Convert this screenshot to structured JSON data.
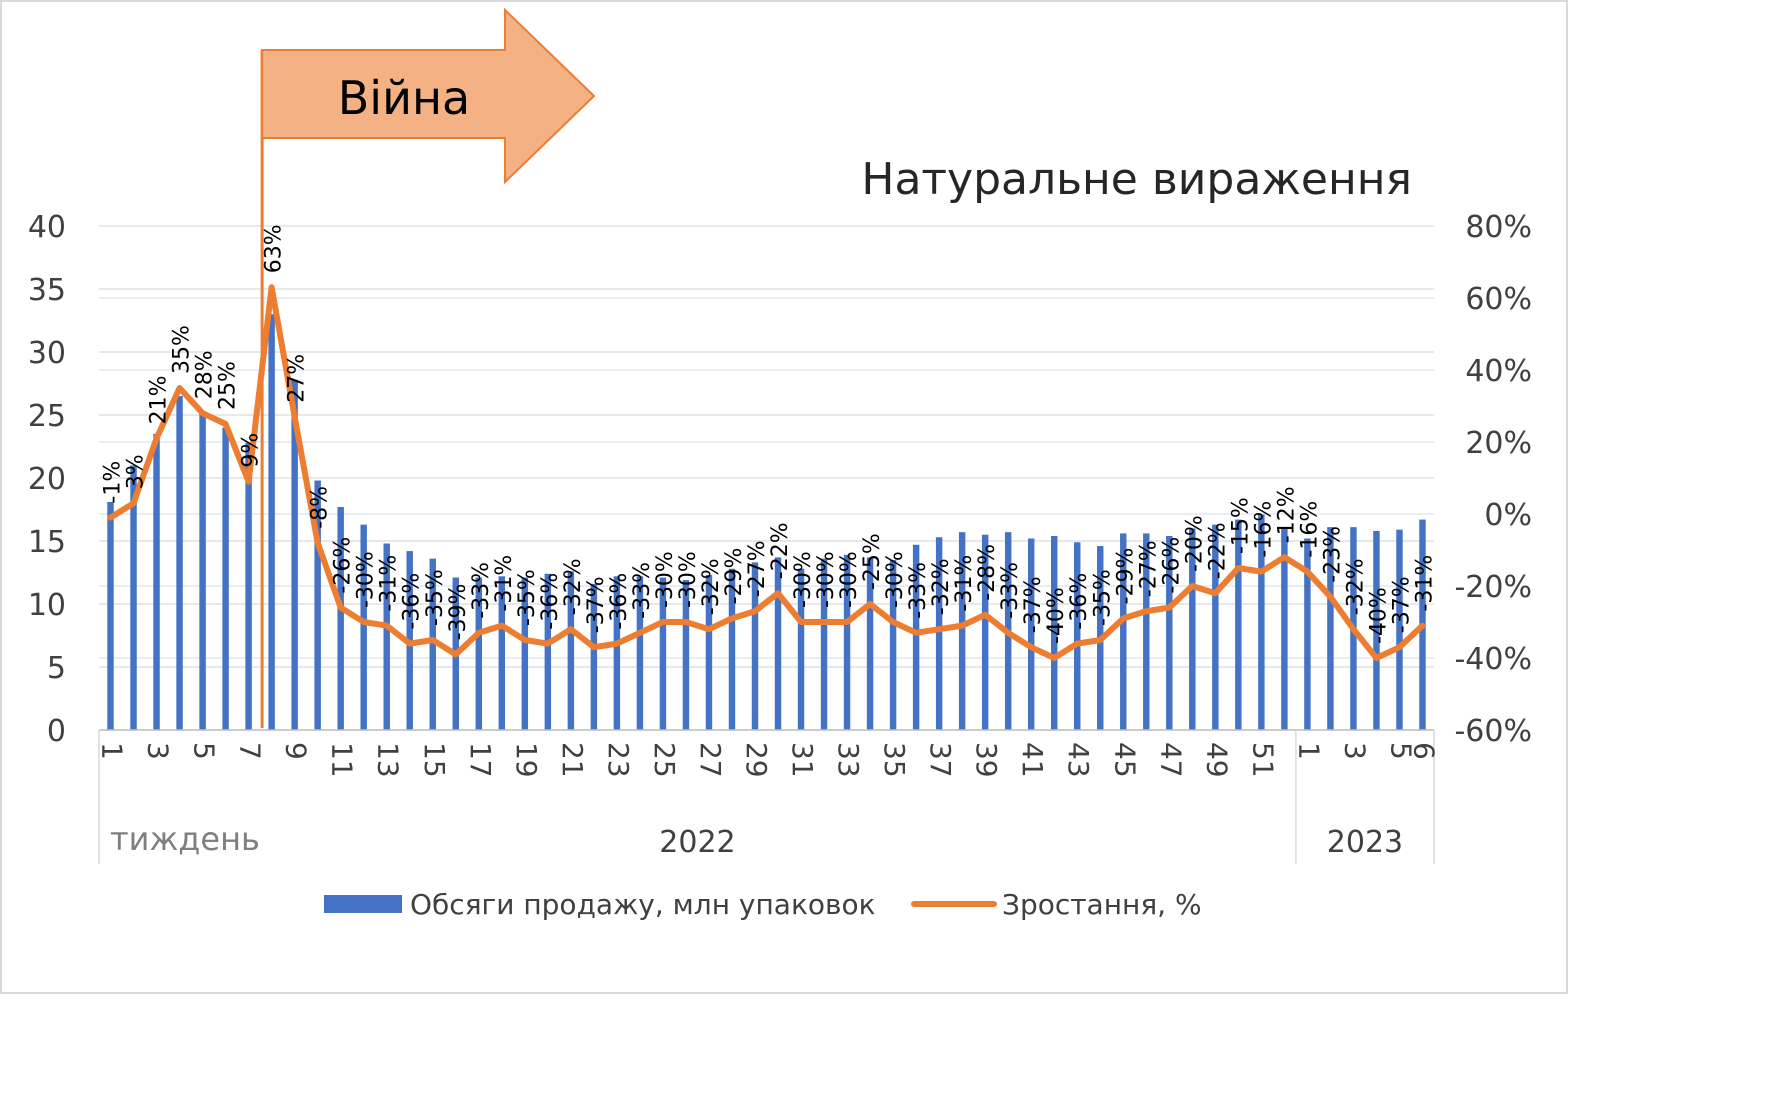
{
  "chart_data": {
    "type": "bar+line",
    "title": "Натуральне вираження",
    "annotation": "Війна",
    "xlabel": "тиждень",
    "year_groups": [
      {
        "label": "2022",
        "start_index": 0,
        "count": 52
      },
      {
        "label": "2023",
        "start_index": 52,
        "count": 6
      }
    ],
    "x_tick_labels": [
      "1",
      "",
      "3",
      "",
      "5",
      "",
      "7",
      "",
      "9",
      "",
      "11",
      "",
      "13",
      "",
      "15",
      "",
      "17",
      "",
      "19",
      "",
      "21",
      "",
      "23",
      "",
      "25",
      "",
      "27",
      "",
      "29",
      "",
      "31",
      "",
      "33",
      "",
      "35",
      "",
      "37",
      "",
      "39",
      "",
      "41",
      "",
      "43",
      "",
      "45",
      "",
      "47",
      "",
      "49",
      "",
      "51",
      "",
      "1",
      "",
      "3",
      "",
      "5",
      "6"
    ],
    "ylim_left": [
      0,
      40
    ],
    "y_ticks_left": [
      "0",
      "5",
      "10",
      "15",
      "20",
      "25",
      "30",
      "35",
      "40"
    ],
    "ylim_right": [
      -60,
      80
    ],
    "y_ticks_right": [
      "-60%",
      "-40%",
      "-20%",
      "0%",
      "20%",
      "40%",
      "60%",
      "80%"
    ],
    "grid": true,
    "legend_position": "bottom",
    "colors": {
      "bars": "#4472C4",
      "line": "#ED7D31",
      "arrow_fill": "#F4B183",
      "arrow_stroke": "#ED7D31",
      "grid": "#d9d9d9"
    },
    "series": [
      {
        "name": "Обсяги продажу, млн упаковок",
        "type": "bar",
        "axis": "left",
        "values": [
          18.1,
          21.0,
          23.5,
          26.5,
          25.3,
          24.0,
          22.8,
          33.0,
          27.8,
          19.8,
          17.7,
          16.3,
          14.8,
          14.2,
          13.6,
          12.1,
          12.1,
          12.2,
          12.1,
          12.4,
          12.6,
          11.6,
          12.2,
          12.2,
          12.1,
          11.9,
          12.3,
          12.8,
          13.3,
          13.7,
          12.8,
          13.6,
          13.9,
          13.7,
          13.5,
          14.7,
          15.3,
          15.7,
          15.5,
          15.7,
          15.2,
          15.4,
          14.9,
          14.6,
          15.6,
          15.6,
          15.4,
          16.0,
          16.3,
          16.7,
          17.1,
          16.1,
          15.2,
          16.1,
          16.1,
          15.8,
          15.9,
          16.7
        ]
      },
      {
        "name": "Зростання, %",
        "type": "line",
        "axis": "right",
        "values": [
          -1,
          3,
          21,
          35,
          28,
          25,
          9,
          63,
          27,
          -8,
          -26,
          -30,
          -31,
          -36,
          -35,
          -39,
          -33,
          -31,
          -35,
          -36,
          -32,
          -37,
          -36,
          -33,
          -30,
          -30,
          -32,
          -29,
          -27,
          -22,
          -30,
          -30,
          -30,
          -25,
          -30,
          -33,
          -32,
          -31,
          -28,
          -33,
          -37,
          -40,
          -36,
          -35,
          -29,
          -27,
          -26,
          -20,
          -22,
          -15,
          -16,
          -12,
          -16,
          -23,
          -32,
          -40,
          -37,
          -31
        ],
        "labels": [
          "-1%",
          "3%",
          "21%",
          "35%",
          "28%",
          "25%",
          "9%",
          "63%",
          "27%",
          "-8%",
          "-26%",
          "-30%",
          "-31%",
          "-36%",
          "-35%",
          "-39%",
          "-33%",
          "-31%",
          "-35%",
          "-36%",
          "-32%",
          "-37%",
          "-36%",
          "-33%",
          "-30%",
          "-30%",
          "-32%",
          "-29%",
          "-27%",
          "-22%",
          "-30%",
          "-30%",
          "-30%",
          "-25%",
          "-30%",
          "-33%",
          "-32%",
          "-31%",
          "-28%",
          "-33%",
          "-37%",
          "-40%",
          "-36%",
          "-35%",
          "-29%",
          "-27%",
          "-26%",
          "-20%",
          "-22%",
          "-15%",
          "-16%",
          "-12%",
          "-16%",
          "-23%",
          "-32%",
          "-40%",
          "-37%",
          "-31%"
        ]
      }
    ],
    "war_marker_week_index": 7
  }
}
